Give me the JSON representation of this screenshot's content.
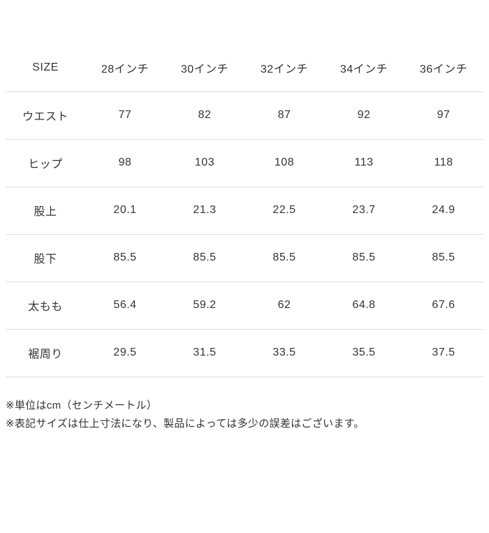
{
  "table": {
    "header": {
      "col0": "SIZE",
      "col1": "28インチ",
      "col2": "30インチ",
      "col3": "32インチ",
      "col4": "34インチ",
      "col5": "36インチ"
    },
    "rows": [
      {
        "label": "ウエスト",
        "values": [
          "77",
          "82",
          "87",
          "92",
          "97"
        ]
      },
      {
        "label": "ヒップ",
        "values": [
          "98",
          "103",
          "108",
          "113",
          "118"
        ]
      },
      {
        "label": "股上",
        "values": [
          "20.1",
          "21.3",
          "22.5",
          "23.7",
          "24.9"
        ]
      },
      {
        "label": "股下",
        "values": [
          "85.5",
          "85.5",
          "85.5",
          "85.5",
          "85.5"
        ]
      },
      {
        "label": "太もも",
        "values": [
          "56.4",
          "59.2",
          "62",
          "64.8",
          "67.6"
        ]
      },
      {
        "label": "裾周り",
        "values": [
          "29.5",
          "31.5",
          "33.5",
          "35.5",
          "37.5"
        ]
      }
    ]
  },
  "notes": {
    "unit_note": "※単位はcm（センチメートル）",
    "tolerance_note": "※表記サイズは仕上寸法になり、製品によっては多少の誤差はございます。"
  },
  "colors": {
    "text": "#333333",
    "divider": "#dddddd",
    "background": "#ffffff"
  }
}
